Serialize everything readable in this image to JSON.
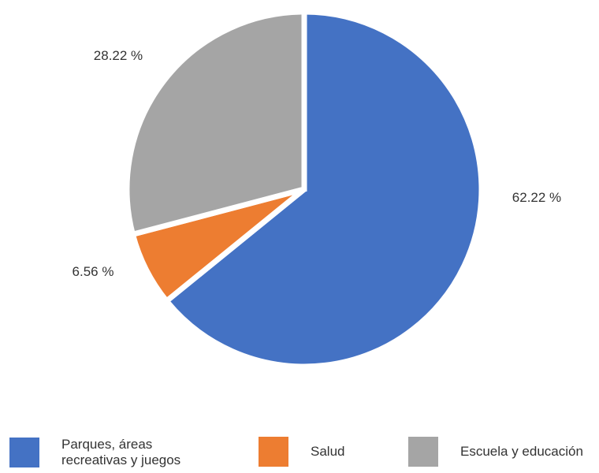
{
  "chart_data": {
    "type": "pie",
    "title": "",
    "slices": [
      {
        "label": "Parques, áreas recreativas y juegos",
        "value": 62.22,
        "data_label": "62.22 %",
        "color": "#4472C4"
      },
      {
        "label": "Salud",
        "value": 6.56,
        "data_label": "6.56 %",
        "color": "#ED7D31"
      },
      {
        "label": "Escuela y educación",
        "value": 28.22,
        "data_label": "28.22 %",
        "color": "#A5A5A5"
      }
    ],
    "legend_position": "bottom",
    "legend": [
      {
        "text_lines": [
          "Parques, áreas",
          "recreativas y juegos"
        ],
        "color": "#4472C4"
      },
      {
        "text_lines": [
          "Salud"
        ],
        "color": "#ED7D31"
      },
      {
        "text_lines": [
          "Escuela y educación"
        ],
        "color": "#A5A5A5"
      }
    ]
  }
}
